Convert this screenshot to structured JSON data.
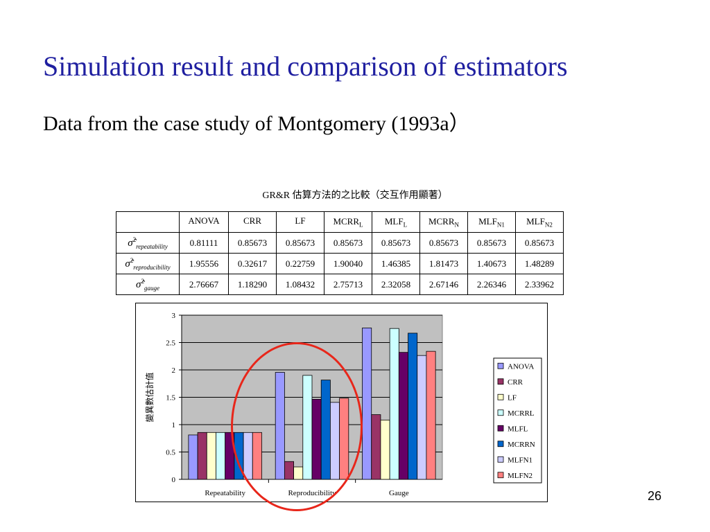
{
  "slide": {
    "title": "Simulation result and comparison of estimators",
    "subtitle": "Data from the case study of Montgomery (1993a）",
    "page_number": "26"
  },
  "table": {
    "caption": "GR&R 估算方法的之比較（交互作用顯著）",
    "headers": [
      {
        "main": "ANOVA",
        "sub": ""
      },
      {
        "main": "CRR",
        "sub": ""
      },
      {
        "main": "LF",
        "sub": ""
      },
      {
        "main": "MCRR",
        "sub": "L"
      },
      {
        "main": "MLF",
        "sub": "L"
      },
      {
        "main": "MCRR",
        "sub": "N"
      },
      {
        "main": "MLF",
        "sub": "N1"
      },
      {
        "main": "MLF",
        "sub": "N2"
      }
    ],
    "rows": [
      {
        "symbol": "σ̂",
        "sup": "2",
        "sub": "repeatability",
        "values": [
          "0.81111",
          "0.85673",
          "0.85673",
          "0.85673",
          "0.85673",
          "0.85673",
          "0.85673",
          "0.85673"
        ]
      },
      {
        "symbol": "σ̂",
        "sup": "2",
        "sub": "reproducibility",
        "values": [
          "1.95556",
          "0.32617",
          "0.22759",
          "1.90040",
          "1.46385",
          "1.81473",
          "1.40673",
          "1.48289"
        ]
      },
      {
        "symbol": "σ̂",
        "sup": "2",
        "sub": "gauge",
        "values": [
          "2.76667",
          "1.18290",
          "1.08432",
          "2.75713",
          "2.32058",
          "2.67146",
          "2.26346",
          "2.33962"
        ]
      }
    ]
  },
  "chart_data": {
    "type": "bar",
    "ylabel": "變異數估計值",
    "ylim": [
      0,
      3
    ],
    "yticks": [
      "0",
      "0.5",
      "1",
      "1.5",
      "2",
      "2.5",
      "3"
    ],
    "categories": [
      "Repeatability",
      "Reproducibility",
      "Gauge"
    ],
    "grid": true,
    "plot_background": "#c0c0c0",
    "legend_position": "right",
    "series": [
      {
        "name": "ANOVA",
        "color": "#9999ff",
        "values": [
          0.81111,
          1.95556,
          2.76667
        ]
      },
      {
        "name": "CRR",
        "color": "#993366",
        "values": [
          0.85673,
          0.32617,
          1.1829
        ]
      },
      {
        "name": "LF",
        "color": "#ffffcc",
        "values": [
          0.85673,
          0.22759,
          1.08432
        ]
      },
      {
        "name": "MCRRL",
        "color": "#ccffff",
        "values": [
          0.85673,
          1.9004,
          2.75713
        ]
      },
      {
        "name": "MLFL",
        "color": "#660066",
        "values": [
          0.85673,
          1.46385,
          2.32058
        ]
      },
      {
        "name": "MCRRN",
        "color": "#0066cc",
        "values": [
          0.85673,
          1.81473,
          2.67146
        ]
      },
      {
        "name": "MLFN1",
        "color": "#ccccff",
        "values": [
          0.85673,
          1.40673,
          2.26346
        ]
      },
      {
        "name": "MLFN2",
        "color": "#ff8080",
        "values": [
          0.85673,
          1.48289,
          2.33962
        ]
      }
    ]
  },
  "highlight": {
    "color": "#e8261a"
  }
}
